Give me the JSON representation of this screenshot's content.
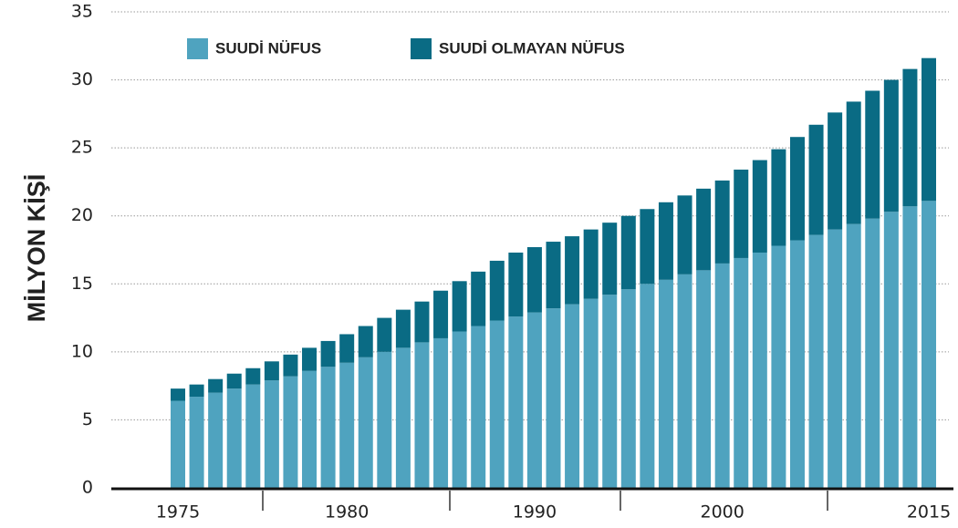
{
  "chart_data": {
    "type": "stacked_bar",
    "y_axis_label": "MİLYON KİŞİ",
    "categories": [
      "1975",
      null,
      null,
      null,
      null,
      null,
      null,
      null,
      null,
      "1980",
      null,
      null,
      null,
      null,
      null,
      null,
      null,
      null,
      null,
      "1990",
      null,
      null,
      null,
      null,
      null,
      null,
      null,
      null,
      null,
      "2000",
      null,
      null,
      null,
      null,
      null,
      null,
      null,
      null,
      null,
      null,
      "2015"
    ],
    "series": [
      {
        "name": "SUUDİ NÜFUS",
        "color": "#4fa3bf",
        "values": [
          6.4,
          6.7,
          7.0,
          7.3,
          7.6,
          7.9,
          8.2,
          8.6,
          8.9,
          9.2,
          9.6,
          10.0,
          10.3,
          10.7,
          11.0,
          11.5,
          11.9,
          12.3,
          12.6,
          12.9,
          13.2,
          13.5,
          13.9,
          14.2,
          14.6,
          15.0,
          15.3,
          15.7,
          16.0,
          16.5,
          16.9,
          17.3,
          17.8,
          18.2,
          18.6,
          19.0,
          19.4,
          19.8,
          20.3,
          20.7,
          21.1
        ]
      },
      {
        "name": "SUUDİ OLMAYAN NÜFUS",
        "color": "#0a6b84",
        "values": [
          0.9,
          0.9,
          1.0,
          1.1,
          1.2,
          1.4,
          1.6,
          1.7,
          1.9,
          2.1,
          2.3,
          2.5,
          2.8,
          3.0,
          3.5,
          3.7,
          4.0,
          4.4,
          4.7,
          4.8,
          4.9,
          5.0,
          5.1,
          5.3,
          5.4,
          5.5,
          5.7,
          5.8,
          6.0,
          6.1,
          6.5,
          6.8,
          7.1,
          7.6,
          8.1,
          8.6,
          9.0,
          9.4,
          9.7,
          10.1,
          10.5
        ]
      }
    ],
    "ylim": [
      0,
      35
    ],
    "yticks": [
      0,
      5,
      10,
      15,
      20,
      25,
      30,
      35
    ],
    "grid": true
  }
}
